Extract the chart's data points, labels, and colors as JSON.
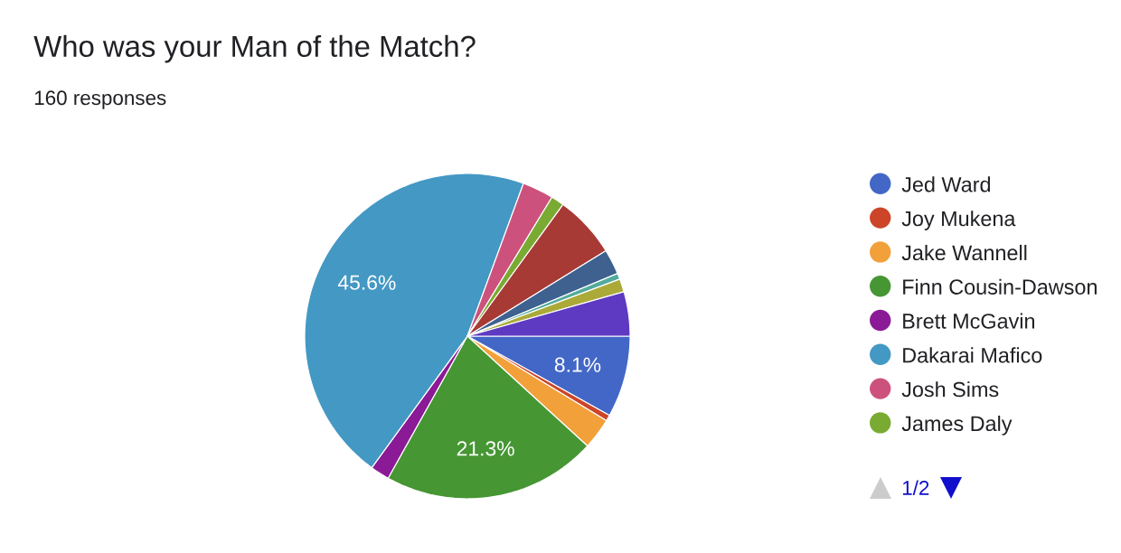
{
  "chart_data": {
    "type": "pie",
    "title": "Who was your Man of the Match?",
    "subtitle": "160 responses",
    "categories": [
      "Jed Ward",
      "Joy Mukena",
      "Jake Wannell",
      "Finn Cousin-Dawson",
      "Brett McGavin",
      "Dakarai Mafico",
      "Josh Sims",
      "James Daly",
      null,
      null,
      null,
      null,
      null
    ],
    "values": [
      8.1,
      0.6,
      3.1,
      21.3,
      1.9,
      45.6,
      3.1,
      1.3,
      6.2,
      2.5,
      0.6,
      1.3,
      4.4
    ],
    "colors": [
      "#4267c6",
      "#cc4529",
      "#f2a03a",
      "#469633",
      "#8b1a96",
      "#4498c4",
      "#cc527d",
      "#79aa32",
      "#a83a35",
      "#3e6190",
      "#52ab9c",
      "#abaa39",
      "#5e3ac2"
    ],
    "value_labels": [
      "8.1%",
      null,
      null,
      "21.3%",
      null,
      "45.6%",
      null,
      null,
      null,
      null,
      null,
      null,
      null
    ],
    "legend": "right",
    "annotations": [
      "1/2"
    ]
  }
}
